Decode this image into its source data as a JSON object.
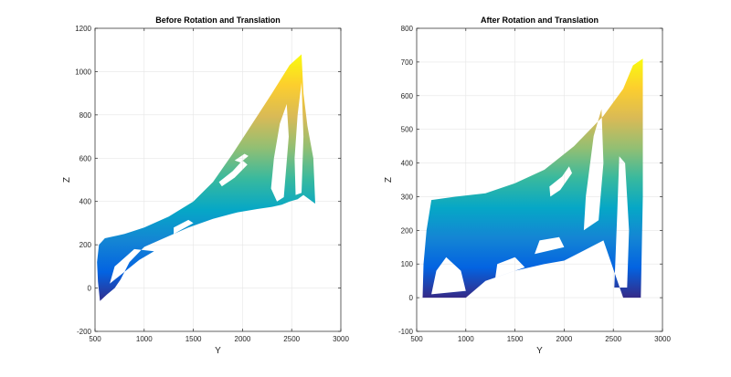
{
  "chart_data": [
    {
      "type": "scatter",
      "title": "Before Rotation and Translation",
      "xlabel": "Y",
      "ylabel": "Z",
      "xlim": [
        500,
        3000
      ],
      "ylim": [
        -200,
        1200
      ],
      "xticks": [
        500,
        1000,
        1500,
        2000,
        2500,
        3000
      ],
      "yticks": [
        -200,
        0,
        200,
        400,
        600,
        800,
        1000,
        1200
      ],
      "grid": true,
      "colormap": "parula",
      "color_range": [
        -70,
        1080
      ],
      "point_cloud_outline": [
        [
          550,
          -60
        ],
        [
          620,
          -30
        ],
        [
          700,
          0
        ],
        [
          760,
          40
        ],
        [
          850,
          120
        ],
        [
          1000,
          190
        ],
        [
          1200,
          230
        ],
        [
          1450,
          280
        ],
        [
          1700,
          320
        ],
        [
          1950,
          350
        ],
        [
          2150,
          365
        ],
        [
          2300,
          375
        ],
        [
          2400,
          385
        ],
        [
          2480,
          400
        ],
        [
          2560,
          410
        ],
        [
          2620,
          430
        ],
        [
          2740,
          390
        ],
        [
          2720,
          600
        ],
        [
          2660,
          750
        ],
        [
          2620,
          900
        ],
        [
          2600,
          1080
        ],
        [
          2480,
          1030
        ],
        [
          2300,
          900
        ],
        [
          2100,
          760
        ],
        [
          1900,
          620
        ],
        [
          1700,
          490
        ],
        [
          1500,
          400
        ],
        [
          1250,
          330
        ],
        [
          1000,
          280
        ],
        [
          800,
          250
        ],
        [
          600,
          230
        ],
        [
          540,
          200
        ],
        [
          520,
          120
        ],
        [
          530,
          30
        ]
      ],
      "gaps": [
        [
          [
            1760,
            490
          ],
          [
            1900,
            540
          ],
          [
            2000,
            590
          ],
          [
            2050,
            570
          ],
          [
            1920,
            510
          ],
          [
            1790,
            470
          ]
        ],
        [
          [
            1920,
            590
          ],
          [
            2020,
            620
          ],
          [
            2060,
            610
          ],
          [
            1980,
            580
          ]
        ],
        [
          [
            2350,
            400
          ],
          [
            2420,
            420
          ],
          [
            2470,
            700
          ],
          [
            2450,
            850
          ],
          [
            2380,
            760
          ],
          [
            2320,
            600
          ],
          [
            2290,
            460
          ]
        ],
        [
          [
            2540,
            430
          ],
          [
            2600,
            440
          ],
          [
            2620,
            700
          ],
          [
            2600,
            950
          ],
          [
            2560,
            800
          ],
          [
            2530,
            600
          ]
        ],
        [
          [
            650,
            20
          ],
          [
            950,
            130
          ],
          [
            1100,
            170
          ],
          [
            900,
            180
          ],
          [
            700,
            100
          ]
        ],
        [
          [
            1300,
            250
          ],
          [
            1500,
            300
          ],
          [
            1450,
            315
          ],
          [
            1300,
            280
          ]
        ]
      ]
    },
    {
      "type": "scatter",
      "title": "After Rotation and Translation",
      "xlabel": "Y",
      "ylabel": "Z",
      "xlim": [
        500,
        3000
      ],
      "ylim": [
        -100,
        800
      ],
      "xticks": [
        500,
        1000,
        1500,
        2000,
        2500,
        3000
      ],
      "yticks": [
        -100,
        0,
        100,
        200,
        300,
        400,
        500,
        600,
        700,
        800
      ],
      "grid": true,
      "colormap": "parula",
      "color_range": [
        0,
        710
      ],
      "point_cloud_outline": [
        [
          560,
          0
        ],
        [
          1000,
          0
        ],
        [
          1200,
          50
        ],
        [
          1500,
          80
        ],
        [
          1800,
          100
        ],
        [
          2000,
          110
        ],
        [
          2200,
          140
        ],
        [
          2400,
          170
        ],
        [
          2600,
          0
        ],
        [
          2780,
          0
        ],
        [
          2800,
          300
        ],
        [
          2800,
          710
        ],
        [
          2700,
          690
        ],
        [
          2600,
          620
        ],
        [
          2400,
          540
        ],
        [
          2100,
          450
        ],
        [
          1800,
          380
        ],
        [
          1500,
          340
        ],
        [
          1200,
          310
        ],
        [
          900,
          300
        ],
        [
          650,
          290
        ],
        [
          600,
          200
        ],
        [
          570,
          100
        ]
      ],
      "gaps": [
        [
          [
            1850,
            330
          ],
          [
            1980,
            360
          ],
          [
            2050,
            390
          ],
          [
            2080,
            370
          ],
          [
            1960,
            320
          ],
          [
            1860,
            300
          ]
        ],
        [
          [
            2200,
            200
          ],
          [
            2350,
            230
          ],
          [
            2400,
            400
          ],
          [
            2380,
            560
          ],
          [
            2300,
            480
          ],
          [
            2220,
            300
          ]
        ],
        [
          [
            2510,
            30
          ],
          [
            2640,
            30
          ],
          [
            2660,
            200
          ],
          [
            2620,
            400
          ],
          [
            2560,
            420
          ],
          [
            2540,
            250
          ]
        ],
        [
          [
            650,
            10
          ],
          [
            1000,
            20
          ],
          [
            950,
            80
          ],
          [
            800,
            120
          ],
          [
            700,
            80
          ]
        ],
        [
          [
            1700,
            130
          ],
          [
            2000,
            150
          ],
          [
            1950,
            180
          ],
          [
            1750,
            170
          ]
        ],
        [
          [
            1300,
            60
          ],
          [
            1600,
            90
          ],
          [
            1500,
            120
          ],
          [
            1320,
            100
          ]
        ]
      ]
    }
  ]
}
